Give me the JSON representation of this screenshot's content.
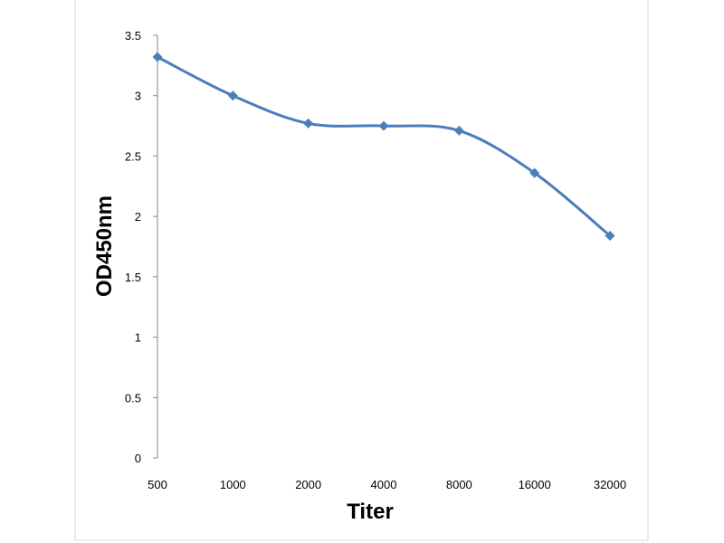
{
  "chart_data": {
    "type": "line",
    "title": "",
    "xlabel": "Titer",
    "ylabel": "OD450nm",
    "x_scale": "categorical",
    "categories": [
      "500",
      "1000",
      "2000",
      "4000",
      "8000",
      "16000",
      "32000"
    ],
    "series": [
      {
        "values": [
          3.32,
          3.0,
          2.77,
          2.75,
          2.71,
          2.36,
          1.84
        ],
        "color": "#4a7ebb",
        "marker": "diamond",
        "smooth": true
      }
    ],
    "ylim": [
      0,
      3.5
    ],
    "y_ticks": [
      "0",
      "0.5",
      "1",
      "1.5",
      "2",
      "2.5",
      "3",
      "3.5"
    ],
    "grid": false,
    "legend": "none"
  },
  "colors": {
    "line": "#4a7ebb",
    "axis": "#868686",
    "frame": "#d9d9d9"
  }
}
